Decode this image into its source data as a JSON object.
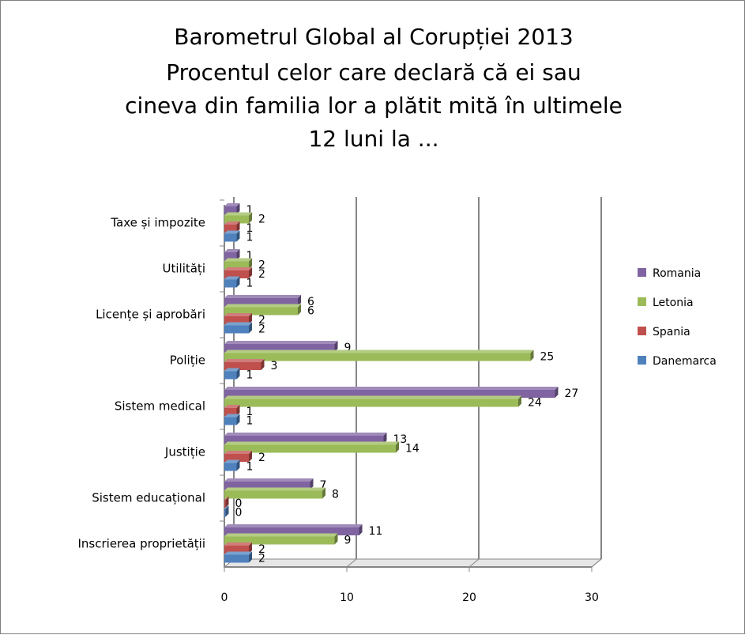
{
  "chart_data": {
    "type": "bar",
    "orientation": "horizontal",
    "title": "Barometrul Global al Corupției 2013",
    "subtitle": [
      "Procentul celor care declară că ei sau",
      "cineva din familia lor a plătit mită în ultimele",
      "12 luni la ..."
    ],
    "categories": [
      "Taxe și impozite",
      "Utilități",
      "Licențe și aprobări",
      "Poliție",
      "Sistem medical",
      "Justiție",
      "Sistem educațional",
      "Inscrierea proprietății"
    ],
    "series": [
      {
        "name": "Romania",
        "color": "#8064a2",
        "values": [
          1,
          1,
          6,
          9,
          27,
          13,
          7,
          11
        ]
      },
      {
        "name": "Letonia",
        "color": "#9bbb59",
        "values": [
          2,
          2,
          6,
          25,
          24,
          14,
          8,
          9
        ]
      },
      {
        "name": "Spania",
        "color": "#c0504d",
        "values": [
          1,
          2,
          2,
          3,
          1,
          2,
          0,
          2
        ]
      },
      {
        "name": "Danemarca",
        "color": "#4f81bd",
        "values": [
          1,
          1,
          2,
          1,
          1,
          1,
          0,
          2
        ]
      }
    ],
    "xlim": [
      0,
      30
    ],
    "x_ticks": [
      "0",
      "10",
      "20",
      "30"
    ],
    "grid": true,
    "legend_position": "right"
  }
}
